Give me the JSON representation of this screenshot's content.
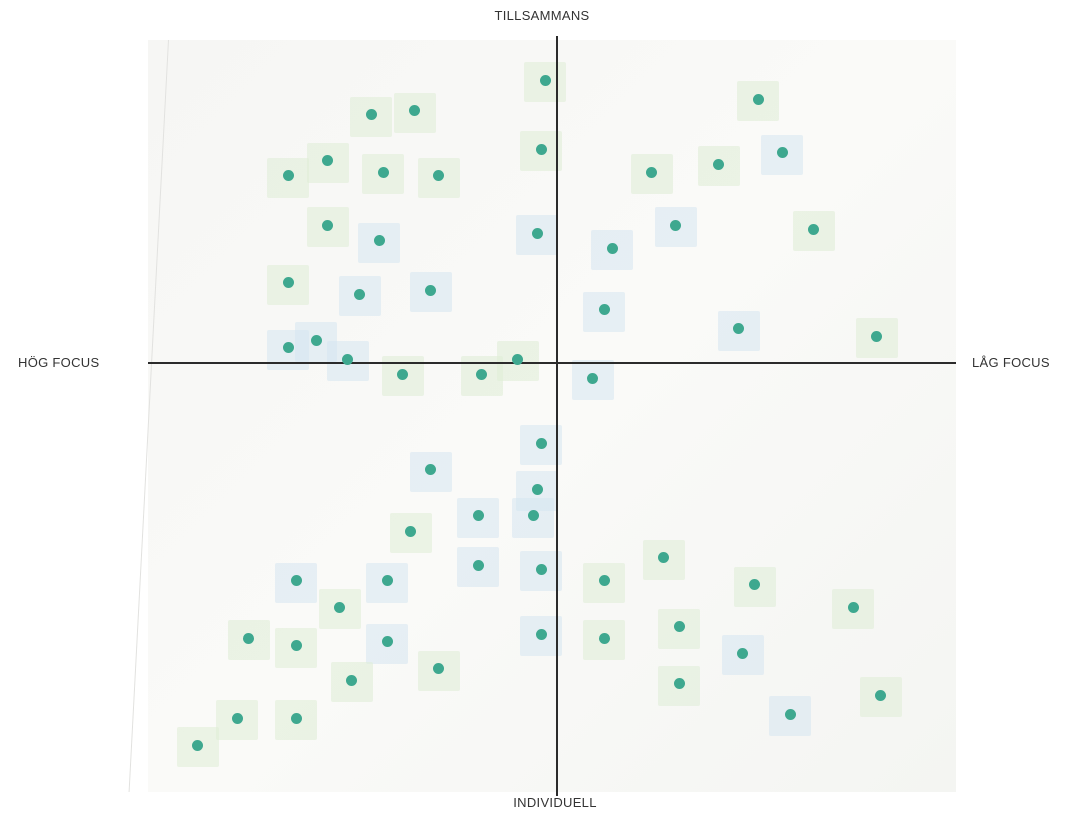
{
  "axes": {
    "top": "TILLSAMMANS",
    "bottom": "INDIVIDUELL",
    "left": "HÖG FOCUS",
    "right": "LÅG FOCUS"
  },
  "colors": {
    "dot": "#3ea88f",
    "axis": "#2b2b2b",
    "note_green": "#deecd6",
    "note_blue": "#d6e6f0"
  },
  "chart_data": {
    "type": "scatter",
    "xlabel_left": "HÖG FOCUS",
    "xlabel_right": "LÅG FOCUS",
    "ylabel_top": "TILLSAMMANS",
    "ylabel_bottom": "INDIVIDUELL",
    "xlim": [
      -1,
      1
    ],
    "ylim": [
      -1,
      1
    ],
    "points": [
      {
        "x": -0.03,
        "y": 0.74,
        "note": "green"
      },
      {
        "x": 0.51,
        "y": 0.69,
        "note": "green"
      },
      {
        "x": -0.47,
        "y": 0.65,
        "note": "green"
      },
      {
        "x": -0.36,
        "y": 0.66,
        "note": "green"
      },
      {
        "x": -0.58,
        "y": 0.53,
        "note": "green"
      },
      {
        "x": -0.68,
        "y": 0.49,
        "note": "green"
      },
      {
        "x": -0.44,
        "y": 0.5,
        "note": "green"
      },
      {
        "x": -0.3,
        "y": 0.49,
        "note": "green"
      },
      {
        "x": -0.04,
        "y": 0.56,
        "note": "green"
      },
      {
        "x": 0.24,
        "y": 0.5,
        "note": "green"
      },
      {
        "x": 0.41,
        "y": 0.52,
        "note": "green"
      },
      {
        "x": 0.57,
        "y": 0.55,
        "note": "blue"
      },
      {
        "x": -0.58,
        "y": 0.36,
        "note": "green"
      },
      {
        "x": -0.45,
        "y": 0.32,
        "note": "blue"
      },
      {
        "x": -0.05,
        "y": 0.34,
        "note": "blue"
      },
      {
        "x": 0.14,
        "y": 0.3,
        "note": "blue"
      },
      {
        "x": 0.3,
        "y": 0.36,
        "note": "blue"
      },
      {
        "x": 0.65,
        "y": 0.35,
        "note": "green"
      },
      {
        "x": -0.68,
        "y": 0.21,
        "note": "green"
      },
      {
        "x": -0.5,
        "y": 0.18,
        "note": "blue"
      },
      {
        "x": -0.32,
        "y": 0.19,
        "note": "blue"
      },
      {
        "x": 0.12,
        "y": 0.14,
        "note": "blue"
      },
      {
        "x": 0.46,
        "y": 0.09,
        "note": "blue"
      },
      {
        "x": 0.81,
        "y": 0.07,
        "note": "green"
      },
      {
        "x": -0.68,
        "y": 0.04,
        "note": "blue"
      },
      {
        "x": -0.61,
        "y": 0.06,
        "note": "blue"
      },
      {
        "x": -0.53,
        "y": 0.01,
        "note": "blue"
      },
      {
        "x": -0.39,
        "y": -0.03,
        "note": "green"
      },
      {
        "x": -0.19,
        "y": -0.03,
        "note": "green"
      },
      {
        "x": -0.1,
        "y": 0.01,
        "note": "green"
      },
      {
        "x": 0.09,
        "y": -0.04,
        "note": "blue"
      },
      {
        "x": -0.04,
        "y": -0.21,
        "note": "blue"
      },
      {
        "x": -0.32,
        "y": -0.28,
        "note": "blue"
      },
      {
        "x": -0.05,
        "y": -0.33,
        "note": "blue"
      },
      {
        "x": -0.2,
        "y": -0.4,
        "note": "blue"
      },
      {
        "x": -0.06,
        "y": -0.4,
        "note": "blue"
      },
      {
        "x": -0.37,
        "y": -0.44,
        "note": "green"
      },
      {
        "x": 0.27,
        "y": -0.51,
        "note": "green"
      },
      {
        "x": -0.2,
        "y": -0.53,
        "note": "blue"
      },
      {
        "x": -0.04,
        "y": -0.54,
        "note": "blue"
      },
      {
        "x": -0.66,
        "y": -0.57,
        "note": "blue"
      },
      {
        "x": -0.43,
        "y": -0.57,
        "note": "blue"
      },
      {
        "x": 0.12,
        "y": -0.57,
        "note": "green"
      },
      {
        "x": 0.5,
        "y": -0.58,
        "note": "green"
      },
      {
        "x": -0.55,
        "y": -0.64,
        "note": "green"
      },
      {
        "x": 0.75,
        "y": -0.64,
        "note": "green"
      },
      {
        "x": 0.31,
        "y": -0.69,
        "note": "green"
      },
      {
        "x": -0.78,
        "y": -0.72,
        "note": "green"
      },
      {
        "x": -0.66,
        "y": -0.74,
        "note": "green"
      },
      {
        "x": -0.43,
        "y": -0.73,
        "note": "blue"
      },
      {
        "x": -0.04,
        "y": -0.71,
        "note": "blue"
      },
      {
        "x": 0.12,
        "y": -0.72,
        "note": "green"
      },
      {
        "x": 0.47,
        "y": -0.76,
        "note": "blue"
      },
      {
        "x": -0.3,
        "y": -0.8,
        "note": "green"
      },
      {
        "x": -0.52,
        "y": -0.83,
        "note": "green"
      },
      {
        "x": 0.31,
        "y": -0.84,
        "note": "green"
      },
      {
        "x": 0.82,
        "y": -0.87,
        "note": "green"
      },
      {
        "x": -0.81,
        "y": -0.93,
        "note": "green"
      },
      {
        "x": -0.66,
        "y": -0.93,
        "note": "green"
      },
      {
        "x": 0.59,
        "y": -0.92,
        "note": "blue"
      },
      {
        "x": -0.91,
        "y": -1.0,
        "note": "green"
      }
    ]
  }
}
